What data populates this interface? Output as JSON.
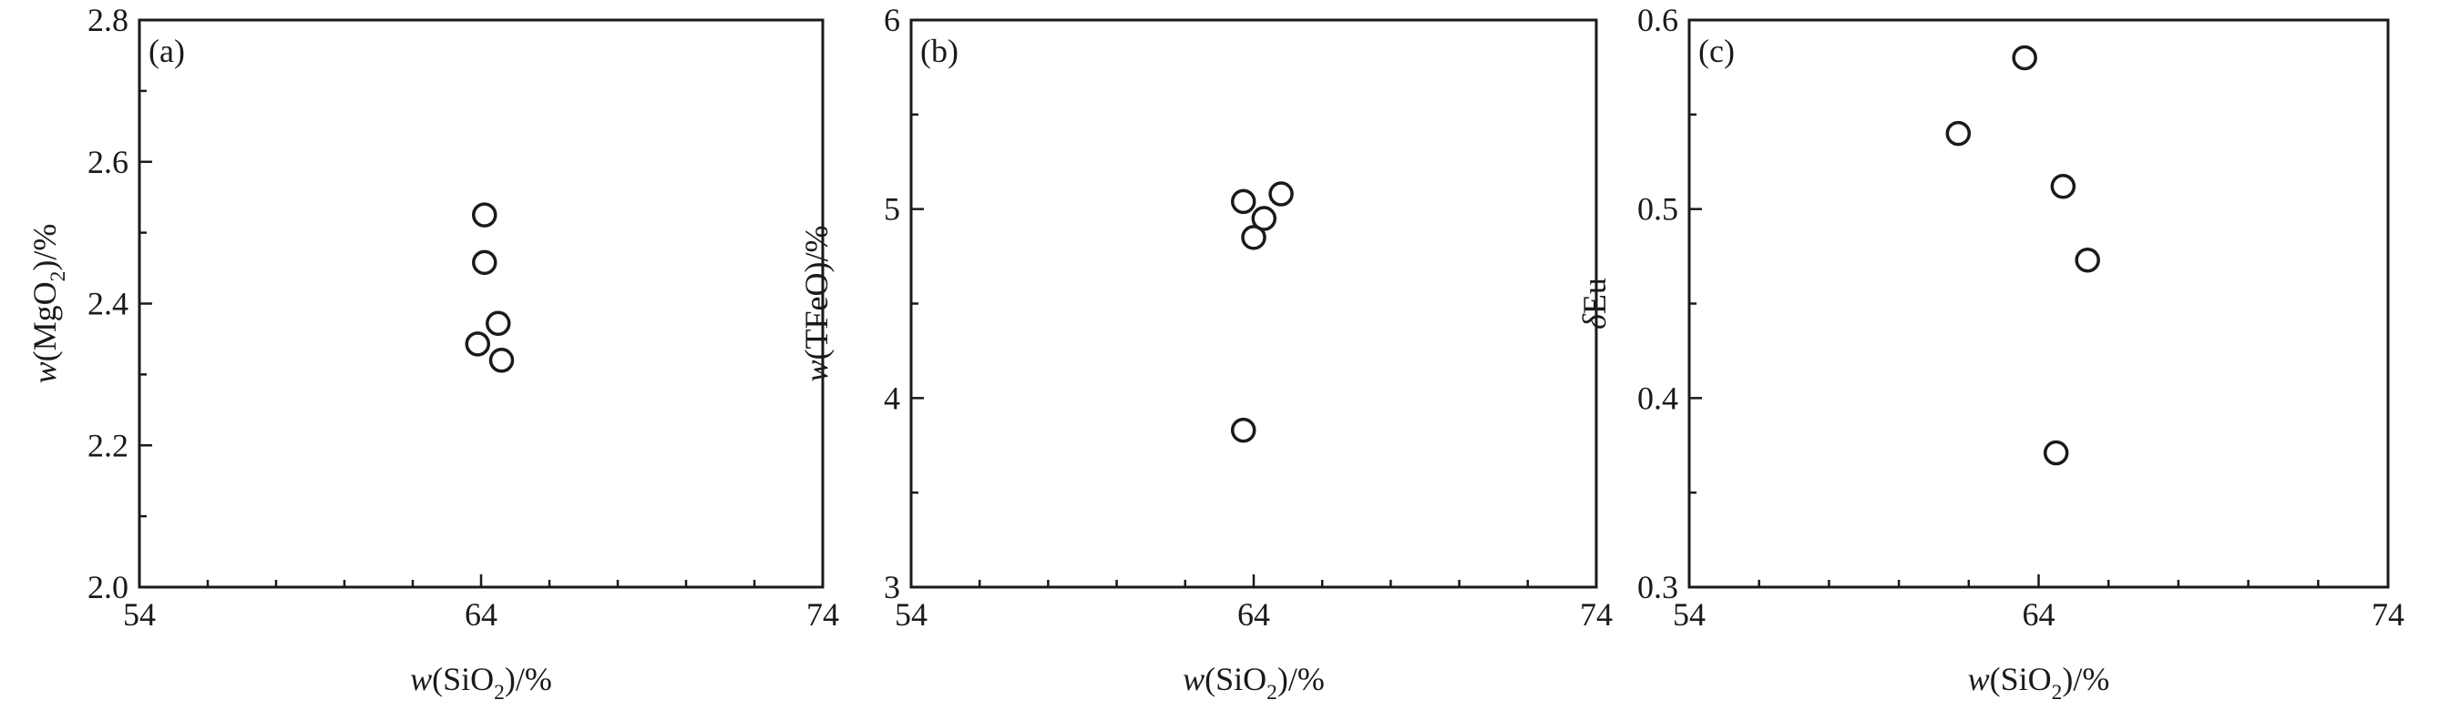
{
  "chart_data": [
    {
      "type": "scatter",
      "panel_label": "(a)",
      "x": [
        63.9,
        64.6,
        64.1,
        64.1,
        64.5
      ],
      "y": [
        2.343,
        2.32,
        2.525,
        2.458,
        2.372
      ],
      "xlabel": {
        "prefix": "w",
        "main": "(SiO",
        "sub": "2",
        "suffix": ")/%"
      },
      "ylabel": {
        "prefix": "w",
        "main": "(MgO",
        "sub": "2",
        "suffix": ")/%"
      },
      "xlim": [
        54,
        74
      ],
      "ylim": [
        2.0,
        2.8
      ],
      "xticks": [
        "54",
        "64",
        "74"
      ],
      "yticks": [
        "2.0",
        "2.2",
        "2.4",
        "2.6",
        "2.8"
      ],
      "grid": false
    },
    {
      "type": "scatter",
      "panel_label": "(b)",
      "x": [
        63.7,
        64.0,
        64.8,
        63.7,
        64.3
      ],
      "y": [
        5.04,
        4.85,
        5.08,
        3.83,
        4.95
      ],
      "xlabel": {
        "prefix": "w",
        "main": "(SiO",
        "sub": "2",
        "suffix": ")/%"
      },
      "ylabel": {
        "prefix": "w",
        "main": "(TFeO)/%",
        "sub": "",
        "suffix": ""
      },
      "xlim": [
        54,
        74
      ],
      "ylim": [
        3,
        6
      ],
      "xticks": [
        "54",
        "64",
        "74"
      ],
      "yticks": [
        "3",
        "4",
        "5",
        "6"
      ],
      "grid": false
    },
    {
      "type": "scatter",
      "panel_label": "(c)",
      "x": [
        61.7,
        63.6,
        64.7,
        65.4,
        64.5
      ],
      "y": [
        0.54,
        0.58,
        0.512,
        0.473,
        0.371
      ],
      "xlabel": {
        "prefix": "w",
        "main": "(SiO",
        "sub": "2",
        "suffix": ")/%"
      },
      "ylabel": {
        "prefix": "δ",
        "main": "Eu",
        "sub": "",
        "suffix": ""
      },
      "xlim": [
        54,
        74
      ],
      "ylim": [
        0.3,
        0.6
      ],
      "xticks": [
        "54",
        "64",
        "74"
      ],
      "yticks": [
        "0.3",
        "0.4",
        "0.5",
        "0.6"
      ],
      "grid": false
    }
  ]
}
